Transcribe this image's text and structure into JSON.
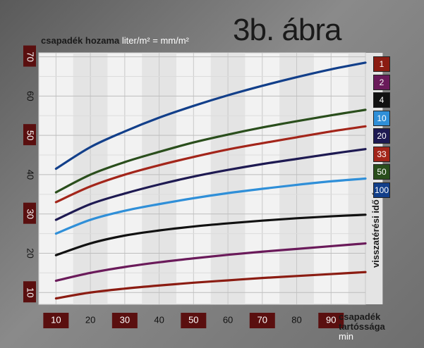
{
  "chart_data": {
    "type": "line",
    "title": "3b. ábra",
    "ylabel_main": "csapadék hozama",
    "ylabel_unit": "liter/m² = mm/m²",
    "xlabel_main": "csapadék tartóssága",
    "xlabel_unit": "min",
    "legend_title": "visszatérési idő év",
    "xlim": [
      10,
      100
    ],
    "ylim": [
      7,
      71
    ],
    "x_ticks": [
      "10",
      "20",
      "30",
      "40",
      "50",
      "60",
      "70",
      "80",
      "90"
    ],
    "y_ticks": [
      "10",
      "20",
      "30",
      "40",
      "50",
      "60",
      "70"
    ],
    "x": [
      10,
      20,
      30,
      40,
      50,
      60,
      70,
      80,
      90,
      100
    ],
    "series": [
      {
        "name": "1",
        "color": "#8b1c12",
        "values": [
          8.5,
          10.0,
          11.0,
          11.8,
          12.5,
          13.1,
          13.7,
          14.2,
          14.7,
          15.2
        ]
      },
      {
        "name": "2",
        "color": "#6a1a5a",
        "values": [
          13.0,
          15.0,
          16.5,
          17.7,
          18.7,
          19.6,
          20.4,
          21.1,
          21.8,
          22.5
        ]
      },
      {
        "name": "4",
        "color": "#111111",
        "values": [
          19.5,
          22.5,
          24.5,
          25.8,
          26.8,
          27.6,
          28.3,
          28.9,
          29.4,
          29.8
        ]
      },
      {
        "name": "10",
        "color": "#2f8fd8",
        "values": [
          25.0,
          28.5,
          30.8,
          32.5,
          34.0,
          35.3,
          36.4,
          37.4,
          38.3,
          39.0
        ]
      },
      {
        "name": "20",
        "color": "#1e1a52",
        "values": [
          28.5,
          32.5,
          35.2,
          37.5,
          39.5,
          41.2,
          42.7,
          44.0,
          45.3,
          46.5
        ]
      },
      {
        "name": "33",
        "color": "#a3251a",
        "values": [
          33.0,
          37.0,
          40.0,
          42.4,
          44.5,
          46.4,
          48.0,
          49.5,
          51.0,
          52.3
        ]
      },
      {
        "name": "50",
        "color": "#2a4e1c",
        "values": [
          35.5,
          40.0,
          43.2,
          45.8,
          48.2,
          50.2,
          52.0,
          53.6,
          55.1,
          56.5
        ]
      },
      {
        "name": "100",
        "color": "#123f8a",
        "values": [
          41.5,
          47.0,
          51.0,
          54.5,
          57.5,
          60.2,
          62.6,
          64.8,
          66.8,
          68.5
        ]
      }
    ]
  }
}
